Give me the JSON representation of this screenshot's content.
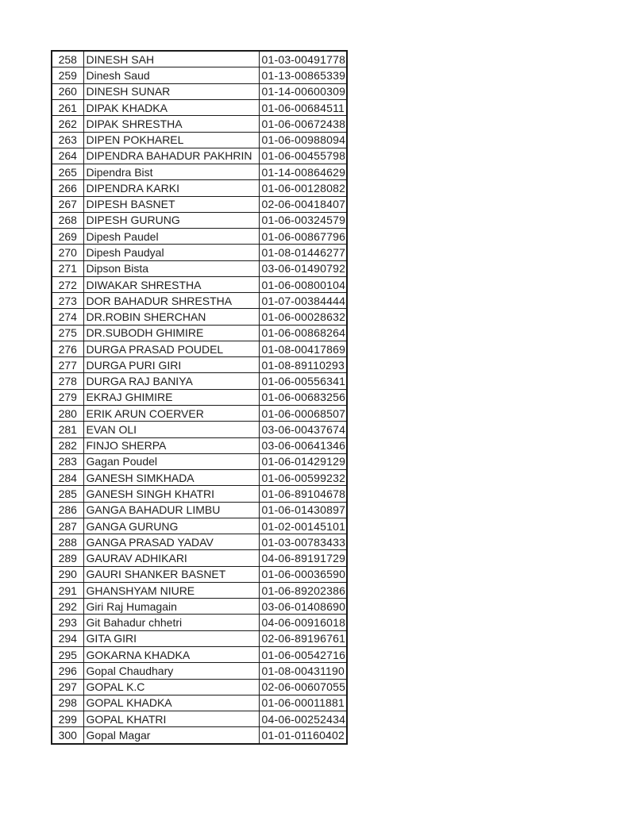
{
  "page": {
    "background_color": "#ffffff",
    "text_color": "#1f1f1f",
    "border_color": "#1a1a1a"
  },
  "table": {
    "columns": [
      "serial_number",
      "name",
      "registration_id"
    ],
    "rows": [
      {
        "no": "258",
        "name": "DINESH SAH",
        "id": "01-03-00491778"
      },
      {
        "no": "259",
        "name": "Dinesh Saud",
        "id": "01-13-00865339"
      },
      {
        "no": "260",
        "name": "DINESH SUNAR",
        "id": "01-14-00600309"
      },
      {
        "no": "261",
        "name": "DIPAK KHADKA",
        "id": "01-06-00684511"
      },
      {
        "no": "262",
        "name": "DIPAK SHRESTHA",
        "id": "01-06-00672438"
      },
      {
        "no": "263",
        "name": "DIPEN POKHAREL",
        "id": "01-06-00988094"
      },
      {
        "no": "264",
        "name": "DIPENDRA BAHADUR PAKHRIN",
        "id": "01-06-00455798"
      },
      {
        "no": "265",
        "name": "Dipendra Bist",
        "id": "01-14-00864629"
      },
      {
        "no": "266",
        "name": "DIPENDRA KARKI",
        "id": "01-06-00128082"
      },
      {
        "no": "267",
        "name": "DIPESH BASNET",
        "id": "02-06-00418407"
      },
      {
        "no": "268",
        "name": "DIPESH GURUNG",
        "id": "01-06-00324579"
      },
      {
        "no": "269",
        "name": "Dipesh Paudel",
        "id": "01-06-00867796"
      },
      {
        "no": "270",
        "name": "Dipesh Paudyal",
        "id": "01-08-01446277"
      },
      {
        "no": "271",
        "name": "Dipson Bista",
        "id": "03-06-01490792"
      },
      {
        "no": "272",
        "name": "DIWAKAR SHRESTHA",
        "id": "01-06-00800104"
      },
      {
        "no": "273",
        "name": "DOR BAHADUR SHRESTHA",
        "id": "01-07-00384444"
      },
      {
        "no": "274",
        "name": "DR.ROBIN SHERCHAN",
        "id": "01-06-00028632"
      },
      {
        "no": "275",
        "name": "DR.SUBODH GHIMIRE",
        "id": "01-06-00868264"
      },
      {
        "no": "276",
        "name": "DURGA PRASAD POUDEL",
        "id": "01-08-00417869"
      },
      {
        "no": "277",
        "name": "DURGA PURI GIRI",
        "id": "01-08-89110293"
      },
      {
        "no": "278",
        "name": "DURGA RAJ BANIYA",
        "id": "01-06-00556341"
      },
      {
        "no": "279",
        "name": "EKRAJ GHIMIRE",
        "id": "01-06-00683256"
      },
      {
        "no": "280",
        "name": "ERIK ARUN COERVER",
        "id": "01-06-00068507"
      },
      {
        "no": "281",
        "name": "EVAN OLI",
        "id": "03-06-00437674"
      },
      {
        "no": "282",
        "name": "FINJO SHERPA",
        "id": "03-06-00641346"
      },
      {
        "no": "283",
        "name": "Gagan Poudel",
        "id": "01-06-01429129"
      },
      {
        "no": "284",
        "name": "GANESH SIMKHADA",
        "id": "01-06-00599232"
      },
      {
        "no": "285",
        "name": "GANESH SINGH KHATRI",
        "id": "01-06-89104678"
      },
      {
        "no": "286",
        "name": "GANGA BAHADUR LIMBU",
        "id": "01-06-01430897"
      },
      {
        "no": "287",
        "name": "GANGA GURUNG",
        "id": "01-02-00145101"
      },
      {
        "no": "288",
        "name": "GANGA PRASAD YADAV",
        "id": "01-03-00783433"
      },
      {
        "no": "289",
        "name": "GAURAV ADHIKARI",
        "id": "04-06-89191729"
      },
      {
        "no": "290",
        "name": "GAURI SHANKER BASNET",
        "id": "01-06-00036590"
      },
      {
        "no": "291",
        "name": "GHANSHYAM NIURE",
        "id": "01-06-89202386"
      },
      {
        "no": "292",
        "name": "Giri Raj Humagain",
        "id": "03-06-01408690"
      },
      {
        "no": "293",
        "name": "Git Bahadur chhetri",
        "id": "04-06-00916018"
      },
      {
        "no": "294",
        "name": "GITA GIRI",
        "id": "02-06-89196761"
      },
      {
        "no": "295",
        "name": "GOKARNA KHADKA",
        "id": "01-06-00542716"
      },
      {
        "no": "296",
        "name": "Gopal Chaudhary",
        "id": "01-08-00431190"
      },
      {
        "no": "297",
        "name": "GOPAL K.C",
        "id": "02-06-00607055"
      },
      {
        "no": "298",
        "name": "GOPAL KHADKA",
        "id": "01-06-00011881"
      },
      {
        "no": "299",
        "name": "GOPAL KHATRI",
        "id": "04-06-00252434"
      },
      {
        "no": "300",
        "name": "Gopal Magar",
        "id": "01-01-01160402"
      }
    ]
  }
}
